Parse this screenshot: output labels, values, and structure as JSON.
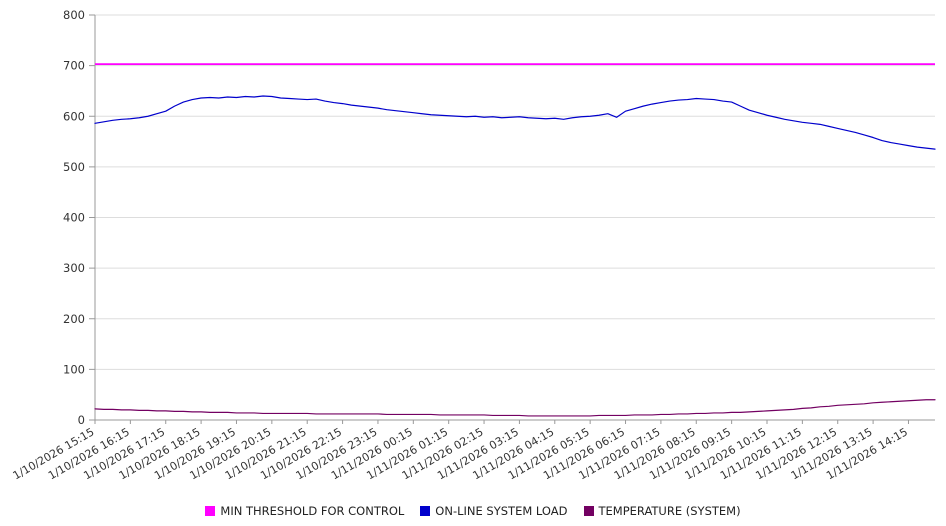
{
  "chart_data": {
    "type": "line",
    "title": "",
    "xlabel": "",
    "ylabel": "",
    "ylim": [
      0,
      800
    ],
    "y_ticks": [
      0,
      100,
      200,
      300,
      400,
      500,
      600,
      700,
      800
    ],
    "grid": "horizontal",
    "legend_position": "bottom",
    "points_per_label": 4,
    "x_labels": [
      "1/10/2026 15:15",
      "1/10/2026 16:15",
      "1/10/2026 17:15",
      "1/10/2026 18:15",
      "1/10/2026 19:15",
      "1/10/2026 20:15",
      "1/10/2026 21:15",
      "1/10/2026 22:15",
      "1/10/2026 23:15",
      "1/11/2026 00:15",
      "1/11/2026 01:15",
      "1/11/2026 02:15",
      "1/11/2026 03:15",
      "1/11/2026 04:15",
      "1/11/2026 05:15",
      "1/11/2026 06:15",
      "1/11/2026 07:15",
      "1/11/2026 08:15",
      "1/11/2026 09:15",
      "1/11/2026 10:15",
      "1/11/2026 11:15",
      "1/11/2026 12:15",
      "1/11/2026 13:15",
      "1/11/2026 14:15"
    ],
    "series": [
      {
        "name": "MIN THRESHOLD FOR CONTROL",
        "color": "#ff00ff",
        "constant": 703
      },
      {
        "name": "ON-LINE SYSTEM LOAD",
        "color": "#0000cc",
        "values": [
          586,
          589,
          592,
          594,
          595,
          597,
          600,
          605,
          610,
          620,
          628,
          633,
          636,
          637,
          636,
          638,
          637,
          639,
          638,
          640,
          639,
          636,
          635,
          634,
          633,
          634,
          630,
          627,
          625,
          622,
          620,
          618,
          616,
          613,
          611,
          609,
          607,
          605,
          603,
          602,
          601,
          600,
          599,
          600,
          598,
          599,
          597,
          598,
          599,
          597,
          596,
          595,
          596,
          594,
          597,
          599,
          600,
          602,
          605,
          598,
          610,
          615,
          620,
          624,
          627,
          630,
          632,
          633,
          635,
          634,
          633,
          630,
          628,
          620,
          612,
          607,
          602,
          598,
          594,
          591,
          588,
          586,
          584,
          580,
          576,
          572,
          568,
          563,
          558,
          552,
          548,
          545,
          542,
          539,
          537,
          535
        ]
      },
      {
        "name": "TEMPERATURE (SYSTEM)",
        "color": "#730062",
        "values": [
          22,
          21,
          21,
          20,
          20,
          19,
          19,
          18,
          18,
          17,
          17,
          16,
          16,
          15,
          15,
          15,
          14,
          14,
          14,
          13,
          13,
          13,
          13,
          13,
          13,
          12,
          12,
          12,
          12,
          12,
          12,
          12,
          12,
          11,
          11,
          11,
          11,
          11,
          11,
          10,
          10,
          10,
          10,
          10,
          10,
          9,
          9,
          9,
          9,
          8,
          8,
          8,
          8,
          8,
          8,
          8,
          8,
          9,
          9,
          9,
          9,
          10,
          10,
          10,
          11,
          11,
          12,
          12,
          13,
          13,
          14,
          14,
          15,
          15,
          16,
          17,
          18,
          19,
          20,
          21,
          23,
          24,
          26,
          27,
          29,
          30,
          31,
          32,
          34,
          35,
          36,
          37,
          38,
          39,
          40,
          40
        ]
      }
    ],
    "colors": {
      "grid": "#dddddd",
      "axis": "#999999",
      "tick_text": "#333333"
    }
  }
}
